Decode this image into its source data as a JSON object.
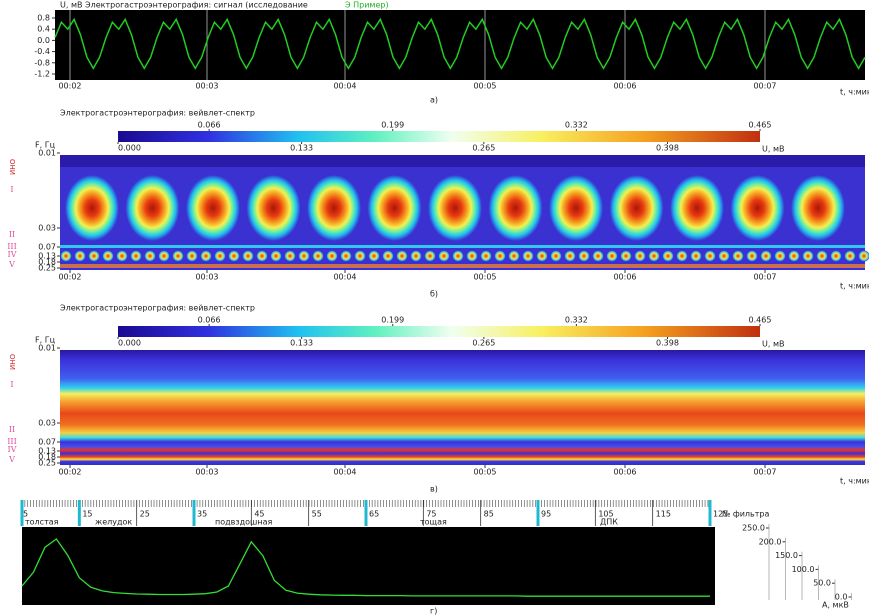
{
  "signal": {
    "header": "U, мВ   Электрогастроэнтерография: сигнал (исследование",
    "highlight": "Э Пример)",
    "yticks": [
      0.8,
      0.4,
      {
        "value": 0,
        "label": "0.0"
      },
      -0.4,
      -0.8,
      -1.2
    ],
    "xticks": [
      "00:02",
      "00:03",
      "00:04",
      "00:05",
      "00:06",
      "00:07"
    ],
    "x_label": "t, ч:мин",
    "color": "#22cc22",
    "values": [
      0.1,
      0.65,
      0.4,
      0.75,
      0.2,
      -0.6,
      -1.0,
      -0.6,
      0.1,
      0.65,
      0.4,
      0.75,
      0.2,
      -0.6,
      -1.0,
      -0.6,
      0.1,
      0.65,
      0.4,
      0.75,
      0.2,
      -0.6,
      -1.0,
      -0.6,
      0.1,
      0.65,
      0.4,
      0.75,
      0.2,
      -0.6,
      -1.0,
      -0.6,
      0.1,
      0.65,
      0.4,
      0.75,
      0.2,
      -0.6,
      -1.0,
      -0.6,
      0.1,
      0.65,
      0.4,
      0.75,
      0.2,
      -0.6,
      -1.0,
      -0.6,
      0.1,
      0.65,
      0.4,
      0.75,
      0.2,
      -0.6,
      -1.0,
      -0.6,
      0.1,
      0.65,
      0.4,
      0.75,
      0.2,
      -0.6,
      -1.0,
      -0.6,
      0.1,
      0.65,
      0.4,
      0.75,
      0.2,
      -0.6,
      -1.0,
      -0.6,
      0.1,
      0.65,
      0.4,
      0.75,
      0.2,
      -0.6,
      -1.0,
      -0.6,
      0.1,
      0.65,
      0.4,
      0.75,
      0.2,
      -0.6,
      -1.0,
      -0.6,
      0.1,
      0.65,
      0.4,
      0.75,
      0.2,
      -0.6,
      -1.0,
      -0.6,
      0.1,
      0.65,
      0.4,
      0.75,
      0.2,
      -0.6,
      -1.0,
      -0.6,
      0.1,
      0.65,
      0.4,
      0.75,
      0.2,
      -0.6,
      -1.0,
      -0.6,
      0.1,
      0.65,
      0.4,
      0.75,
      0.2,
      -0.6,
      -1.0,
      -0.6,
      0.1,
      0.65,
      0.4,
      0.75,
      0.2,
      -0.6,
      -1.0,
      -0.6
    ],
    "caption": "а)"
  },
  "spectra": [
    {
      "kind": "blobs",
      "title": "Электрогастроэнтерография: вейвлет-спектр",
      "scale_top": [
        0.066,
        0.199,
        0.332,
        0.465
      ],
      "scale_bottom": [
        {
          "value": 0,
          "label": "0.000"
        },
        0.133,
        0.265,
        0.398
      ],
      "unit": "U, мВ",
      "f_label": "F, Гц",
      "fticks": [
        0.01,
        0.03,
        0.07,
        0.13,
        0.18,
        0.25
      ],
      "zones": [
        "ОНИ",
        "I",
        "II",
        "III",
        "IV",
        "V"
      ],
      "xticks": [
        "00:02",
        "00:03",
        "00:04",
        "00:05",
        "00:06",
        "00:07"
      ],
      "x_label": "t, ч:мин",
      "caption": "б)"
    },
    {
      "kind": "bands",
      "title": "Электрогастроэнтерография: вейвлет-спектр",
      "scale_top": [
        0.066,
        0.199,
        0.332,
        0.465
      ],
      "scale_bottom": [
        {
          "value": 0,
          "label": "0.000"
        },
        0.133,
        0.265,
        0.398
      ],
      "unit": "U, мВ",
      "f_label": "F, Гц",
      "fticks": [
        0.01,
        0.03,
        0.07,
        0.13,
        0.18,
        0.25
      ],
      "zones": [
        "ОНИ",
        "I",
        "II",
        "III",
        "IV",
        "V"
      ],
      "xticks": [
        "00:02",
        "00:03",
        "00:04",
        "00:05",
        "00:06",
        "00:07"
      ],
      "x_label": "t, ч:мин",
      "caption": "в)"
    }
  ],
  "filters": {
    "ruler": [
      5,
      15,
      25,
      35,
      45,
      55,
      65,
      75,
      85,
      95,
      105,
      115,
      125
    ],
    "segments": [
      "толстая",
      "желудок",
      "подвздошная",
      "тощая",
      "ДПК"
    ],
    "title": "№ фильтра",
    "color": "#33dd33",
    "x": [
      5,
      7,
      9,
      11,
      13,
      15,
      17,
      19,
      21,
      23,
      25,
      27,
      29,
      31,
      33,
      35,
      37,
      39,
      41,
      43,
      45,
      47,
      49,
      51,
      53,
      55,
      57,
      59,
      61,
      63,
      65,
      67,
      69,
      71,
      73,
      75,
      77,
      79,
      81,
      83,
      85,
      87,
      89,
      91,
      93,
      95,
      97,
      99,
      101,
      103,
      105,
      107,
      109,
      111,
      113,
      115,
      117,
      119,
      121,
      123,
      125
    ],
    "values": [
      40,
      90,
      180,
      210,
      150,
      70,
      35,
      22,
      16,
      13,
      11,
      10,
      9,
      9,
      9,
      10,
      12,
      18,
      40,
      120,
      200,
      150,
      60,
      25,
      14,
      10,
      8,
      7,
      6,
      6,
      5,
      5,
      5,
      5,
      4,
      4,
      4,
      4,
      4,
      4,
      4,
      4,
      4,
      4,
      3,
      3,
      3,
      3,
      3,
      3,
      3,
      3,
      3,
      3,
      3,
      3,
      3,
      3,
      3,
      3,
      3
    ],
    "aticks": [
      {
        "value": 250,
        "label": "250.0"
      },
      {
        "value": 200,
        "label": "200.0"
      },
      {
        "value": 150,
        "label": "150.0"
      },
      {
        "value": 100,
        "label": "100.0"
      },
      {
        "value": 50,
        "label": "50.0"
      },
      {
        "value": 0,
        "label": "0.0"
      }
    ],
    "a_label": "А, мкВ",
    "caption": "г)"
  }
}
